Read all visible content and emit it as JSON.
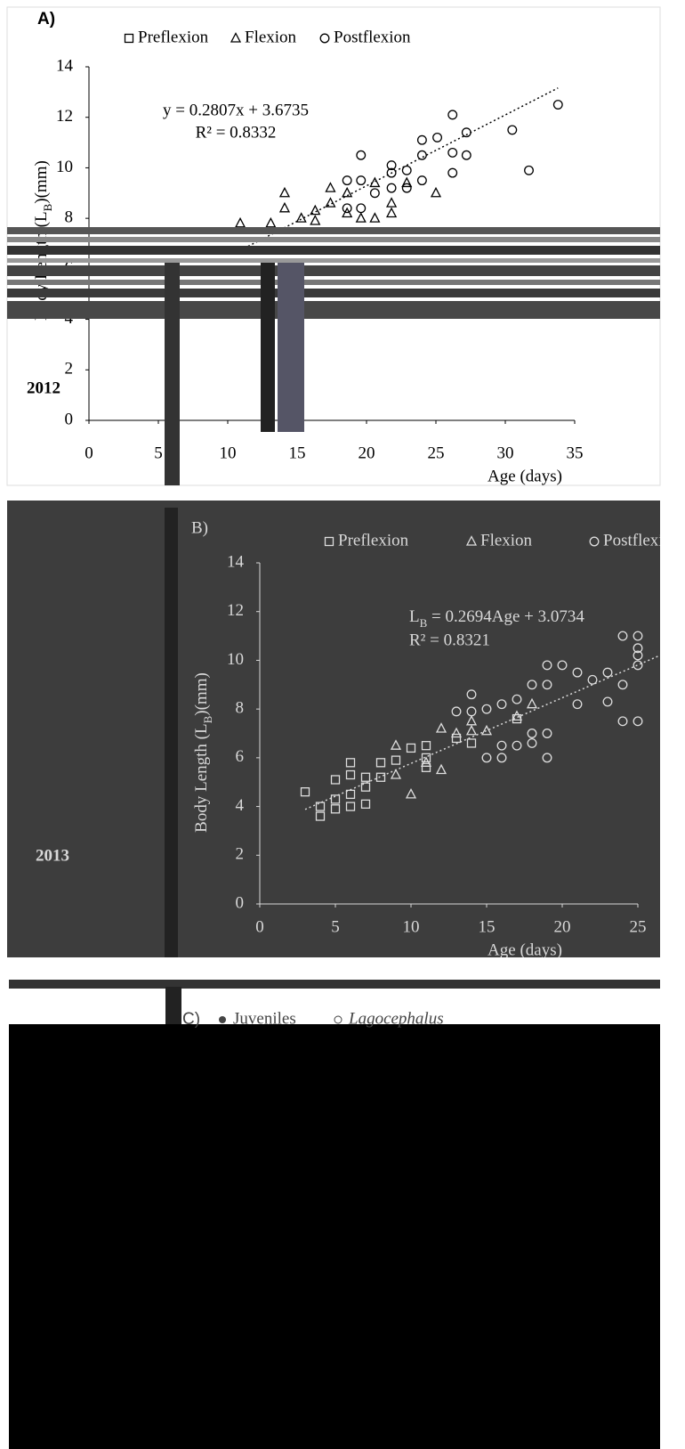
{
  "chart_data": [
    {
      "type": "scatter",
      "panel": "A)",
      "year": "2012",
      "equation": "y = 0.2807x + 3.6735",
      "r2": "R² = 0.8332",
      "fit": {
        "slope": 0.2807,
        "intercept": 3.6735
      },
      "ylabel": [
        "Body Length (L",
        "B",
        ")(mm)"
      ],
      "xlabel": "Age (days)",
      "xlim": [
        0,
        35
      ],
      "xticks": [
        0,
        5,
        10,
        15,
        20,
        25,
        30,
        35
      ],
      "ylim": [
        0,
        14
      ],
      "yticks": [
        0,
        2,
        4,
        6,
        8,
        10,
        12,
        14
      ],
      "series": [
        {
          "name": "Preflexion",
          "color": "#000000",
          "marker": "square",
          "x": [],
          "values": []
        },
        {
          "name": "Flexion",
          "color": "#000000",
          "marker": "triangle",
          "x": [
            10.9,
            13.1,
            14.1,
            14.1,
            15.3,
            16.3,
            16.3,
            17.4,
            17.4,
            18.6,
            18.6,
            19.6,
            20.6,
            20.6,
            21.8,
            21.8,
            22.9,
            25.0
          ],
          "values": [
            7.8,
            7.8,
            9.0,
            8.4,
            8.0,
            8.3,
            7.9,
            9.2,
            8.6,
            9.0,
            8.2,
            8.0,
            9.4,
            8.0,
            8.2,
            8.6,
            9.4,
            9.0
          ]
        },
        {
          "name": "Postflexion",
          "color": "#000000",
          "marker": "circle",
          "x": [
            18.6,
            19.6,
            19.6,
            18.6,
            19.6,
            20.6,
            21.8,
            21.8,
            21.8,
            22.9,
            22.9,
            24.0,
            24.0,
            24.0,
            25.1,
            26.2,
            26.2,
            26.2,
            27.2,
            27.2,
            30.5,
            31.7,
            33.8
          ],
          "values": [
            8.4,
            8.4,
            10.5,
            9.5,
            9.5,
            9.0,
            10.1,
            9.8,
            9.2,
            9.9,
            9.2,
            11.1,
            10.5,
            9.5,
            11.2,
            12.1,
            10.6,
            9.8,
            11.4,
            10.5,
            11.5,
            9.9,
            12.5
          ]
        }
      ]
    },
    {
      "type": "scatter",
      "panel": "B)",
      "year": "2013",
      "equation": [
        "L",
        "B",
        " = 0.2694Age + 3.0734"
      ],
      "r2": "R² = 0.8321",
      "fit": {
        "slope": 0.2694,
        "intercept": 3.0734
      },
      "ylabel": [
        "Body Length (L",
        "B",
        ")(mm)"
      ],
      "xlabel": "Age (days)",
      "xlim": [
        0,
        25
      ],
      "xticks": [
        0,
        5,
        10,
        15,
        20,
        25
      ],
      "ylim": [
        0,
        14
      ],
      "yticks": [
        0,
        2,
        4,
        6,
        8,
        10,
        12,
        14
      ],
      "series": [
        {
          "name": "Preflexion",
          "color": "#dddddd",
          "marker": "square",
          "x": [
            3,
            4,
            4,
            5,
            5,
            5,
            6,
            6,
            6,
            6,
            7,
            7,
            7,
            8,
            8,
            9,
            10,
            11,
            11,
            11,
            13,
            14,
            17
          ],
          "values": [
            4.6,
            3.6,
            4.0,
            3.9,
            4.3,
            5.1,
            4.0,
            4.5,
            5.3,
            5.8,
            4.1,
            4.8,
            5.2,
            5.2,
            5.8,
            5.9,
            6.4,
            5.6,
            6.0,
            6.5,
            6.8,
            6.6,
            7.6
          ]
        },
        {
          "name": "Flexion",
          "color": "#dddddd",
          "marker": "triangle",
          "x": [
            9,
            9,
            10,
            11,
            12,
            12,
            13,
            14,
            14,
            15,
            17,
            18
          ],
          "values": [
            5.3,
            6.5,
            4.5,
            5.8,
            5.5,
            7.2,
            7.0,
            7.1,
            7.5,
            7.1,
            7.7,
            8.2
          ]
        },
        {
          "name": "Postflexion",
          "color": "#dddddd",
          "marker": "circle",
          "x": [
            13,
            14,
            14,
            15,
            15,
            16,
            16,
            16,
            17,
            17,
            18,
            18,
            18,
            19,
            19,
            19,
            19,
            20,
            21,
            21,
            22,
            23,
            23,
            24,
            24,
            24,
            25,
            25,
            25,
            25,
            25
          ],
          "values": [
            7.9,
            8.6,
            7.9,
            6.0,
            8.0,
            6.0,
            6.5,
            8.2,
            6.5,
            8.4,
            6.6,
            7.0,
            9.0,
            6.0,
            7.0,
            9.0,
            9.8,
            9.8,
            9.5,
            8.2,
            9.2,
            9.5,
            8.3,
            9.0,
            7.5,
            11.0,
            11.0,
            10.5,
            10.2,
            9.8,
            7.5
          ]
        }
      ]
    }
  ],
  "panel_c": {
    "label": "C)",
    "legend": [
      "Juveniles",
      "Lagocephalus"
    ]
  }
}
